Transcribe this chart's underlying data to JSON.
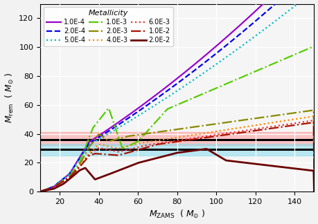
{
  "xlim": [
    10,
    150
  ],
  "ylim": [
    0,
    130
  ],
  "xticks": [
    20,
    40,
    60,
    80,
    100,
    120,
    140
  ],
  "yticks": [
    0,
    20,
    40,
    60,
    80,
    100,
    120
  ],
  "ligo_mass1": 36.0,
  "ligo_mass2": 29.0,
  "ligo_band1_lo": 32.0,
  "ligo_band1_hi": 41.0,
  "ligo_band2_lo": 25.0,
  "ligo_band2_hi": 33.0,
  "background_color": "#f2f2f2",
  "ax_facecolor": "#f5f5f5",
  "metallicities": [
    "1.0E-4",
    "2.0E-4",
    "5.0E-4",
    "1.0E-3",
    "2.0E-3",
    "4.0E-3",
    "6.0E-3",
    "1.0E-2",
    "2.0E-2"
  ],
  "colors": [
    "#9900CC",
    "#0000EE",
    "#00BBCC",
    "#55CC00",
    "#888800",
    "#FF8800",
    "#EE3333",
    "#AA1100",
    "#6B0000"
  ],
  "linestyles": [
    "-",
    "--",
    ":",
    "-.",
    "-.",
    ":",
    ":",
    "-.",
    "-"
  ],
  "linewidths": [
    1.6,
    1.6,
    1.6,
    1.6,
    1.6,
    1.6,
    1.6,
    1.6,
    2.0
  ]
}
